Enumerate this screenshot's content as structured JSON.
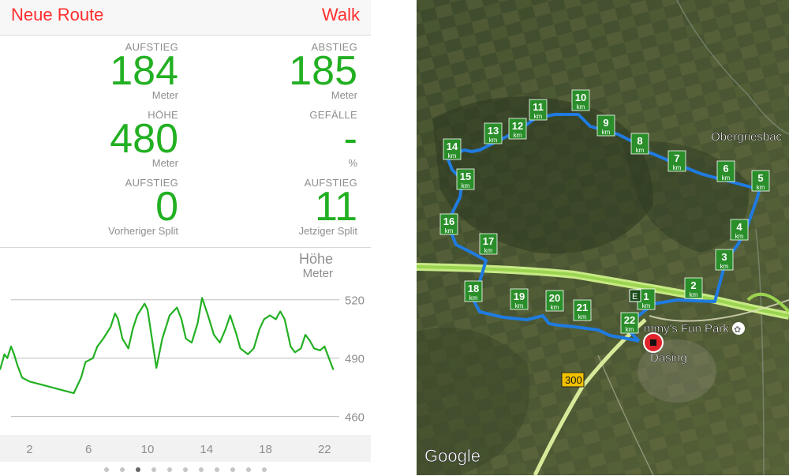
{
  "nav": {
    "left": "Neue Route",
    "right": "Walk"
  },
  "stats": [
    {
      "label": "AUFSTIEG",
      "value": "184",
      "unit": "Meter"
    },
    {
      "label": "ABSTIEG",
      "value": "185",
      "unit": "Meter"
    },
    {
      "label": "HÖHE",
      "value": "480",
      "unit": "Meter"
    },
    {
      "label": "GEFÄLLE",
      "value": "-",
      "unit": "%"
    },
    {
      "label": "AUFSTIEG",
      "value": "0",
      "unit": "Vorheriger Split"
    },
    {
      "label": "AUFSTIEG",
      "value": "11",
      "unit": "Jetziger Split"
    }
  ],
  "chart_data": {
    "type": "line",
    "title": "Höhe",
    "ylabel": "Meter",
    "xlim": [
      0,
      23
    ],
    "ylim": [
      455,
      528
    ],
    "yticks": [
      520,
      490,
      460
    ],
    "xticks": [
      2,
      6,
      10,
      14,
      18,
      22
    ],
    "grid": true,
    "color": "#22b022",
    "series": [
      {
        "values": [
          [
            0.0,
            484
          ],
          [
            0.3,
            492
          ],
          [
            0.5,
            490
          ],
          [
            0.75,
            496
          ],
          [
            0.95,
            492
          ],
          [
            1.2,
            486
          ],
          [
            1.5,
            480
          ],
          [
            2.0,
            478
          ],
          [
            3.0,
            476
          ],
          [
            4.0,
            474
          ],
          [
            5.0,
            472
          ],
          [
            5.5,
            480
          ],
          [
            5.8,
            488
          ],
          [
            6.3,
            490
          ],
          [
            6.6,
            496
          ],
          [
            7.0,
            500
          ],
          [
            7.5,
            506
          ],
          [
            7.8,
            513
          ],
          [
            8.0,
            510
          ],
          [
            8.3,
            500
          ],
          [
            8.7,
            495
          ],
          [
            9.0,
            505
          ],
          [
            9.3,
            512
          ],
          [
            9.8,
            518
          ],
          [
            10.0,
            515
          ],
          [
            10.3,
            500
          ],
          [
            10.6,
            485
          ],
          [
            11.0,
            500
          ],
          [
            11.5,
            512
          ],
          [
            12.0,
            516
          ],
          [
            12.3,
            510
          ],
          [
            12.6,
            500
          ],
          [
            13.0,
            498
          ],
          [
            13.4,
            508
          ],
          [
            13.7,
            521
          ],
          [
            14.1,
            512
          ],
          [
            14.5,
            502
          ],
          [
            14.9,
            498
          ],
          [
            15.3,
            505
          ],
          [
            15.6,
            512
          ],
          [
            16.0,
            503
          ],
          [
            16.3,
            495
          ],
          [
            16.8,
            492
          ],
          [
            17.2,
            495
          ],
          [
            17.6,
            505
          ],
          [
            17.9,
            510
          ],
          [
            18.3,
            512
          ],
          [
            18.7,
            510
          ],
          [
            19.0,
            514
          ],
          [
            19.3,
            510
          ],
          [
            19.7,
            496
          ],
          [
            20.0,
            493
          ],
          [
            20.4,
            495
          ],
          [
            20.7,
            502
          ],
          [
            21.0,
            499
          ],
          [
            21.3,
            495
          ],
          [
            21.7,
            494
          ],
          [
            22.0,
            496
          ],
          [
            22.3,
            490
          ],
          [
            22.6,
            484
          ]
        ]
      }
    ]
  },
  "pager": {
    "count": 11,
    "active": 2
  },
  "map": {
    "km_markers": [
      "1",
      "2",
      "3",
      "4",
      "5",
      "6",
      "7",
      "8",
      "9",
      "10",
      "11",
      "12",
      "13",
      "14",
      "15",
      "16",
      "17",
      "18",
      "19",
      "20",
      "21",
      "22"
    ],
    "place_labels": [
      "Obergriesbac",
      "mmy's Fun Park",
      "Dasing"
    ],
    "road_shields": [
      "300",
      "E"
    ],
    "attribution": "Google",
    "route_color": "#1f7be0"
  }
}
